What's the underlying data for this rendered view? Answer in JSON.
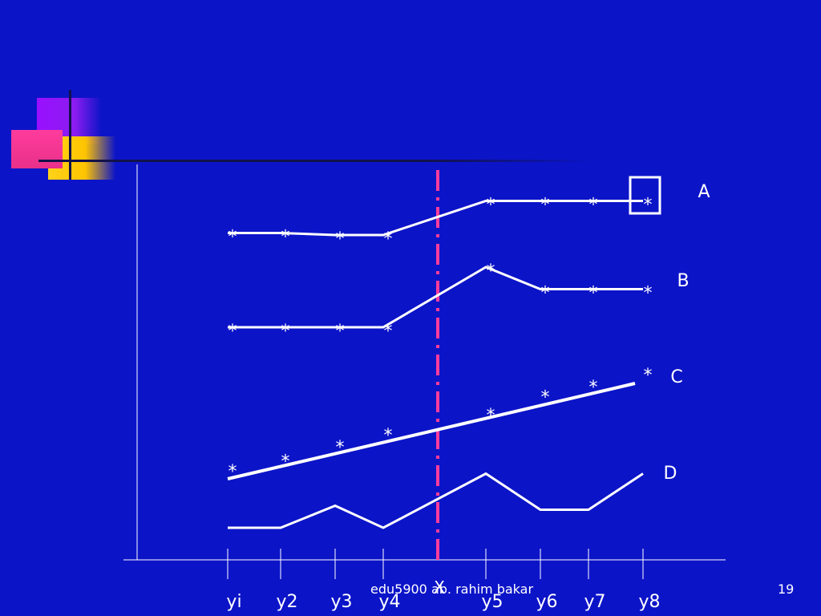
{
  "footer": {
    "credit": "edu5900 ab. rahim bakar",
    "slide_number": "19"
  },
  "colors": {
    "background": "#0c14c8",
    "line": "#ffffff",
    "cut_line": "#ff3c9c"
  },
  "chart_data": {
    "type": "line",
    "categories": [
      "yi",
      "y2",
      "y3",
      "y4",
      "X",
      "y5",
      "y6",
      "y7",
      "y8"
    ],
    "xlabel": "",
    "ylabel": "",
    "grid": false,
    "legend": "labels at right end of each series",
    "intervention_after": "y4",
    "marker": "*",
    "series": [
      {
        "name": "A",
        "values": [
          16.3,
          16.3,
          16.2,
          16.2,
          null,
          17.9,
          17.9,
          17.9,
          17.9
        ]
      },
      {
        "name": "B",
        "values": [
          11.6,
          11.6,
          11.6,
          11.6,
          null,
          14.6,
          13.5,
          13.5,
          13.5
        ]
      },
      {
        "name": "C",
        "values": [
          4.6,
          5.1,
          5.8,
          6.4,
          null,
          7.4,
          8.3,
          8.8,
          9.4
        ]
      },
      {
        "name": "D",
        "values": [
          1.6,
          1.6,
          2.7,
          1.6,
          null,
          4.3,
          2.5,
          2.5,
          4.3
        ]
      }
    ]
  }
}
